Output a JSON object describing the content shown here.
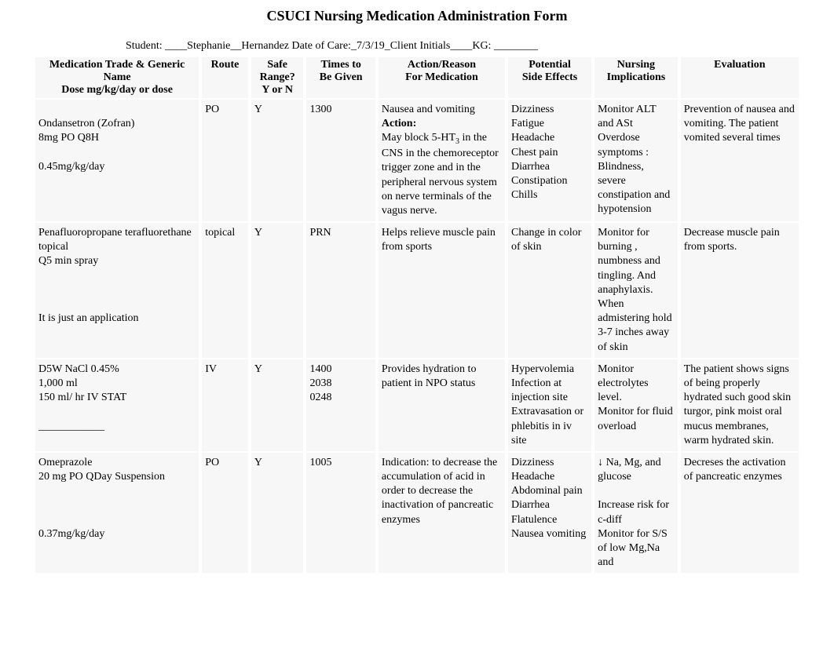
{
  "title": "CSUCI Nursing Medication Administration Form",
  "meta": {
    "student_label": "Student: ",
    "student_blank": "____",
    "student_name": "Stephanie__Hernandez",
    "date_label": "   Date of Care:",
    "date_value": "_7/3/19_",
    "client_label": "Client Initials____",
    "kg_label": "KG: ________"
  },
  "headers": {
    "med_line1": "Medication Trade & Generic",
    "med_line2": "Name",
    "med_line3": "Dose mg/kg/day or dose",
    "route": "Route",
    "safe_line1": "Safe",
    "safe_line2": "Range?",
    "safe_line3": "Y or N",
    "times_line1": "Times to",
    "times_line2": "Be Given",
    "action_line1": "Action/Reason",
    "action_line2": "For Medication",
    "side_line1": "Potential",
    "side_line2": "Side Effects",
    "impl_line1": "Nursing",
    "impl_line2": "Implications",
    "eval": "Evaluation"
  },
  "rows": [
    {
      "med": " \nOndansetron (Zofran)\n8mg PO Q8H\n\n0.45mg/kg/day",
      "route": "PO",
      "safe": "Y",
      "times": "1300",
      "action": "Nausea and vomiting\nAction:\nMay block 5-HT₃ in the CNS in the chemoreceptor trigger zone and in the peripheral nervous system on nerve terminals of the vagus nerve.",
      "side": "Dizziness\nFatigue\nHeadache\nChest pain\nDiarrhea\nConstipation\nChills",
      "impl": "Monitor ALT and ASt\nOverdose symptoms : Blindness, severe constipation and hypotension",
      "eval": "Prevention of nausea and vomiting.  The patient vomited several times"
    },
    {
      "med": "Penafluoropropane terafluorethane topical\nQ5 min spray\n\n\n\nIt is just an application",
      "route": "topical",
      "safe": "Y",
      "times": "PRN",
      "action": "Helps relieve  muscle pain from sports",
      "side": "Change in color of skin",
      "impl": "  Monitor for burning , numbness and tingling. And anaphylaxis.\n  When admistering hold 3-7 inches away of skin",
      "eval": "  Decrease muscle pain  from sports."
    },
    {
      "med": "D5W NaCl 0.45%\n1,000 ml\n150 ml/ hr  IV STAT\n\n____________",
      "route": "IV",
      "safe": "Y",
      "times": "1400\n2038\n0248",
      "action": "Provides hydration to patient in NPO status",
      "side": "Hypervolemia\nInfection at injection site\nExtravasation or phlebitis in iv site",
      "impl": "Monitor electrolytes level.\nMonitor for fluid overload",
      "eval": "The patient shows signs of being properly hydrated such good skin turgor, pink moist oral mucus membranes, warm hydrated skin."
    },
    {
      "med": "Omeprazole\n20 mg PO QDay Suspension\n\n\n\n0.37mg/kg/day",
      "route": "PO",
      "safe": "Y",
      "times": "1005",
      "action": "Indication: to decrease the accumulation of acid in order to decrease the inactivation  of pancreatic enzymes",
      "side": "Dizziness\nHeadache\nAbdominal pain\nDiarrhea\nFlatulence\nNausea vomiting",
      "impl": "↓ Na, Mg, and glucose\n\nIncrease risk for c-diff\n  Monitor for S/S of low Mg,Na and",
      "eval": "Decreses the activation of pancreatic enzymes"
    }
  ]
}
